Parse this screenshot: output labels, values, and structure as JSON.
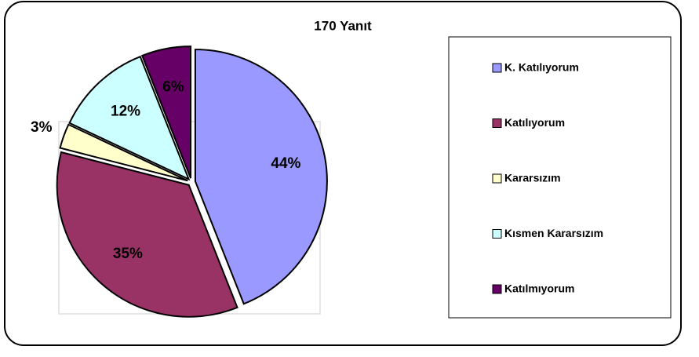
{
  "chart_data": {
    "type": "pie",
    "title": "170 Yanıt",
    "categories": [
      "K. Katılıyorum",
      "Katılıyorum",
      "Kararsızım",
      "Kısmen Kararsızım",
      "Katılmıyorum"
    ],
    "values": [
      44,
      35,
      3,
      12,
      6
    ],
    "value_labels": [
      "44%",
      "35%",
      "3%",
      "12%",
      "6%"
    ],
    "colors": [
      "#9999ff",
      "#993366",
      "#ffffcc",
      "#ccffff",
      "#660066"
    ],
    "legend": "right"
  }
}
